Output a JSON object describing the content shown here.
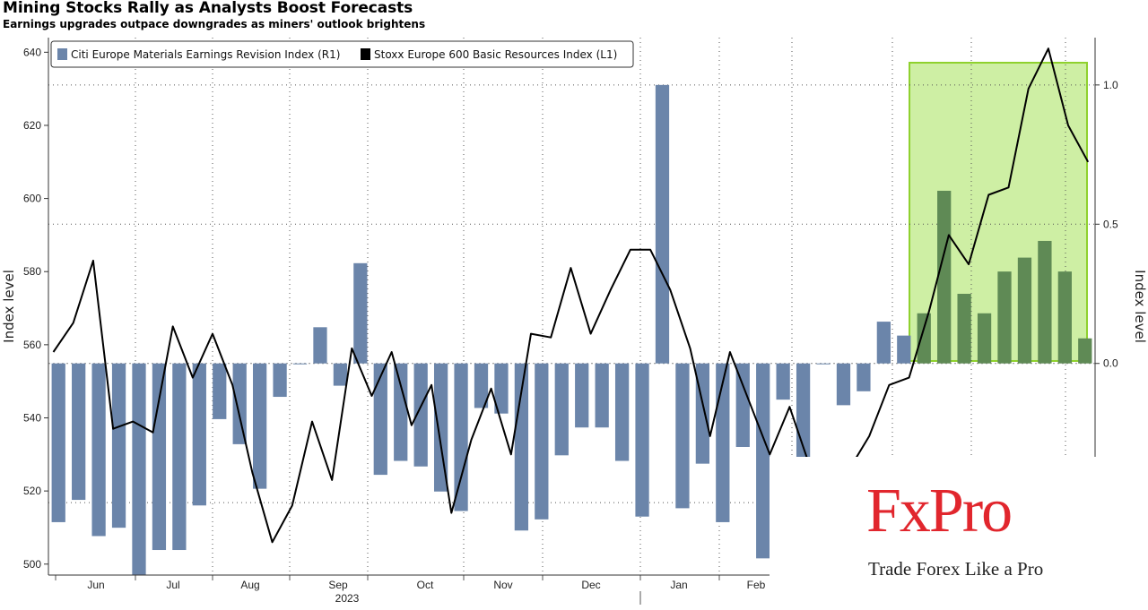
{
  "header": {
    "title": "Mining Stocks Rally as Analysts Boost Forecasts",
    "subtitle": "Earnings upgrades outpace downgrades as miners' outlook brightens"
  },
  "logo": {
    "brand": "FxPro",
    "tagline": "Trade Forex Like a Pro",
    "color": "#e1262d"
  },
  "chart_data": {
    "type": "bar",
    "ylabel_left": "Index level",
    "ylabel_right": "Index level",
    "left_axis": {
      "min": 497,
      "max": 644,
      "ticks": [
        500,
        520,
        540,
        560,
        580,
        600,
        620,
        640
      ]
    },
    "right_axis": {
      "min": -0.76,
      "max": 1.17,
      "ticks": [
        0.0,
        0.5,
        1.0
      ],
      "tick_labels": [
        "0.0",
        "0.5",
        "1.0"
      ]
    },
    "month_labels": [
      "Jun",
      "Jul",
      "Aug",
      "Sep",
      "Oct",
      "Nov",
      "Dec",
      "Jan",
      "Feb"
    ],
    "year_label": "2023",
    "legend_position": "top-left",
    "grid": true,
    "highlight_color": "#a6e15a",
    "series": [
      {
        "name": "Citi Europe Materials Earnings Revision Index (R1)",
        "kind": "bar",
        "axis": "right",
        "color": "#6b85aa",
        "highlight_bar_color": "#5f8a55",
        "values": [
          -0.57,
          -0.49,
          -0.62,
          -0.59,
          -0.76,
          -0.67,
          -0.67,
          -0.51,
          -0.2,
          -0.29,
          -0.45,
          -0.12,
          0.0,
          0.13,
          -0.08,
          0.36,
          -0.4,
          -0.35,
          -0.37,
          -0.46,
          -0.53,
          -0.16,
          -0.18,
          -0.6,
          -0.56,
          -0.33,
          -0.23,
          -0.23,
          -0.35,
          -0.55,
          1.0,
          -0.52,
          -0.36,
          -0.57,
          -0.3,
          -0.7,
          -0.13,
          -0.49,
          0.0,
          -0.15,
          -0.1,
          0.15,
          0.1,
          0.18,
          0.62,
          0.25,
          0.18,
          0.33,
          0.38,
          0.44,
          0.33,
          0.09
        ]
      },
      {
        "name": "Stoxx Europe 600 Basic Resources Index (L1)",
        "kind": "line",
        "axis": "left",
        "color": "#000000",
        "values": [
          558,
          566,
          583,
          537,
          539,
          536,
          565,
          551,
          563,
          549,
          525,
          506,
          516,
          539,
          523,
          559,
          546,
          558,
          538,
          549,
          514,
          534,
          548,
          530,
          563,
          562,
          581,
          563,
          575,
          586,
          586,
          575,
          559,
          535,
          558,
          544,
          530,
          543,
          527,
          527,
          526,
          535,
          549,
          551,
          569,
          590,
          582,
          601,
          603,
          630,
          641,
          620,
          610
        ]
      }
    ]
  }
}
